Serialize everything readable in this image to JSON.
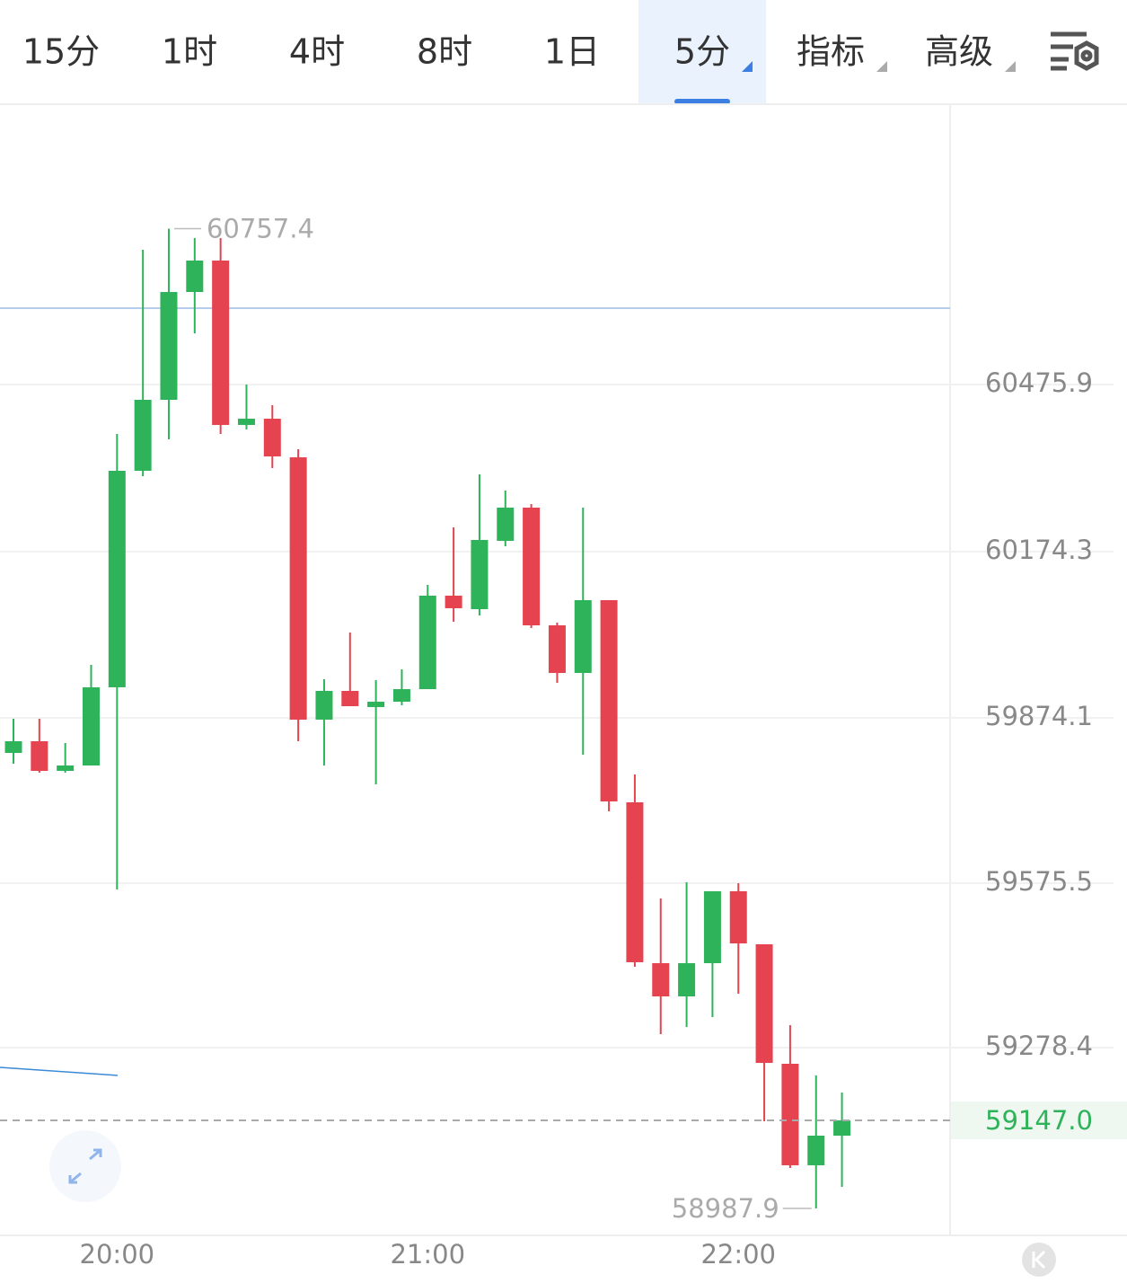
{
  "tabs": [
    "15分",
    "1时",
    "4时",
    "8时",
    "1日",
    "5分",
    "指标",
    "高级"
  ],
  "active_tab": 5,
  "chart_data": {
    "type": "candlestick",
    "categories": [
      null,
      null,
      null,
      null,
      "20:00",
      null,
      null,
      null,
      null,
      null,
      null,
      null,
      null,
      null,
      null,
      null,
      "21:00",
      null,
      null,
      null,
      null,
      null,
      null,
      null,
      null,
      null,
      null,
      null,
      "22:00",
      null,
      null,
      null,
      null
    ],
    "open": [
      59810.6,
      59831.7,
      59778.2,
      59787.9,
      59929.1,
      60320.1,
      60448.3,
      60643.0,
      60699.8,
      60402.9,
      60414.2,
      60344.5,
      59870.7,
      59922.6,
      59893.4,
      59903.1,
      59925.8,
      60094.6,
      60070.2,
      60193.6,
      60253.6,
      60041.0,
      59955.0,
      60086.5,
      59721.4,
      59430.9,
      59370.9,
      59430.9,
      59560.8,
      59465.0,
      59249.2,
      59065.9,
      59119.4
    ],
    "high": [
      59872.3,
      59872.3,
      59828.5,
      59969.6,
      60386.7,
      60719.3,
      60757.4,
      60740.4,
      60740.4,
      60475.9,
      60438.6,
      60359.1,
      59943.7,
      60028.1,
      59942.1,
      59961.5,
      60114.1,
      60217.9,
      60313.6,
      60284.4,
      60260.1,
      60045.9,
      60253.6,
      60086.5,
      59771.7,
      59547.8,
      59577.0,
      59560.8,
      59575.4,
      59465.0,
      59319.0,
      59228.1,
      59197.3
    ],
    "low": [
      59791.2,
      59774.9,
      59774.9,
      59787.9,
      59564.0,
      60310.4,
      60376.9,
      60568.4,
      60386.7,
      60394.8,
      60325.0,
      59831.7,
      59787.9,
      59895.0,
      59753.8,
      59896.6,
      59925.8,
      60047.5,
      60058.9,
      60183.8,
      60036.2,
      59937.2,
      59807.4,
      59705.2,
      59424.5,
      59302.8,
      59315.7,
      59333.6,
      59375.8,
      59145.4,
      59061.0,
      58987.9,
      59026.9
    ],
    "close": [
      59831.7,
      59778.2,
      59787.9,
      59929.1,
      60320.1,
      60448.3,
      60643.0,
      60699.8,
      60402.9,
      60414.2,
      60346.1,
      59870.7,
      59922.6,
      59895.0,
      59903.1,
      59925.8,
      60094.6,
      60071.9,
      60195.2,
      60253.6,
      60041.0,
      59955.0,
      60086.5,
      59723.0,
      59432.6,
      59370.9,
      59430.9,
      59560.8,
      59466.6,
      59250.8,
      59065.9,
      59119.4,
      59147.0
    ],
    "up_color": "#2fb35a",
    "down_color": "#e5434f",
    "ylim": [
      58939.3,
      60980.5
    ],
    "yticks": [
      59278.4,
      59575.5,
      59874.1,
      60174.3,
      60475.9
    ],
    "grid": true,
    "max_index": 6,
    "min_index": 31,
    "last_price": {
      "value": 59147.0,
      "label": "59147.0"
    },
    "reference_line": 60613.8
  }
}
